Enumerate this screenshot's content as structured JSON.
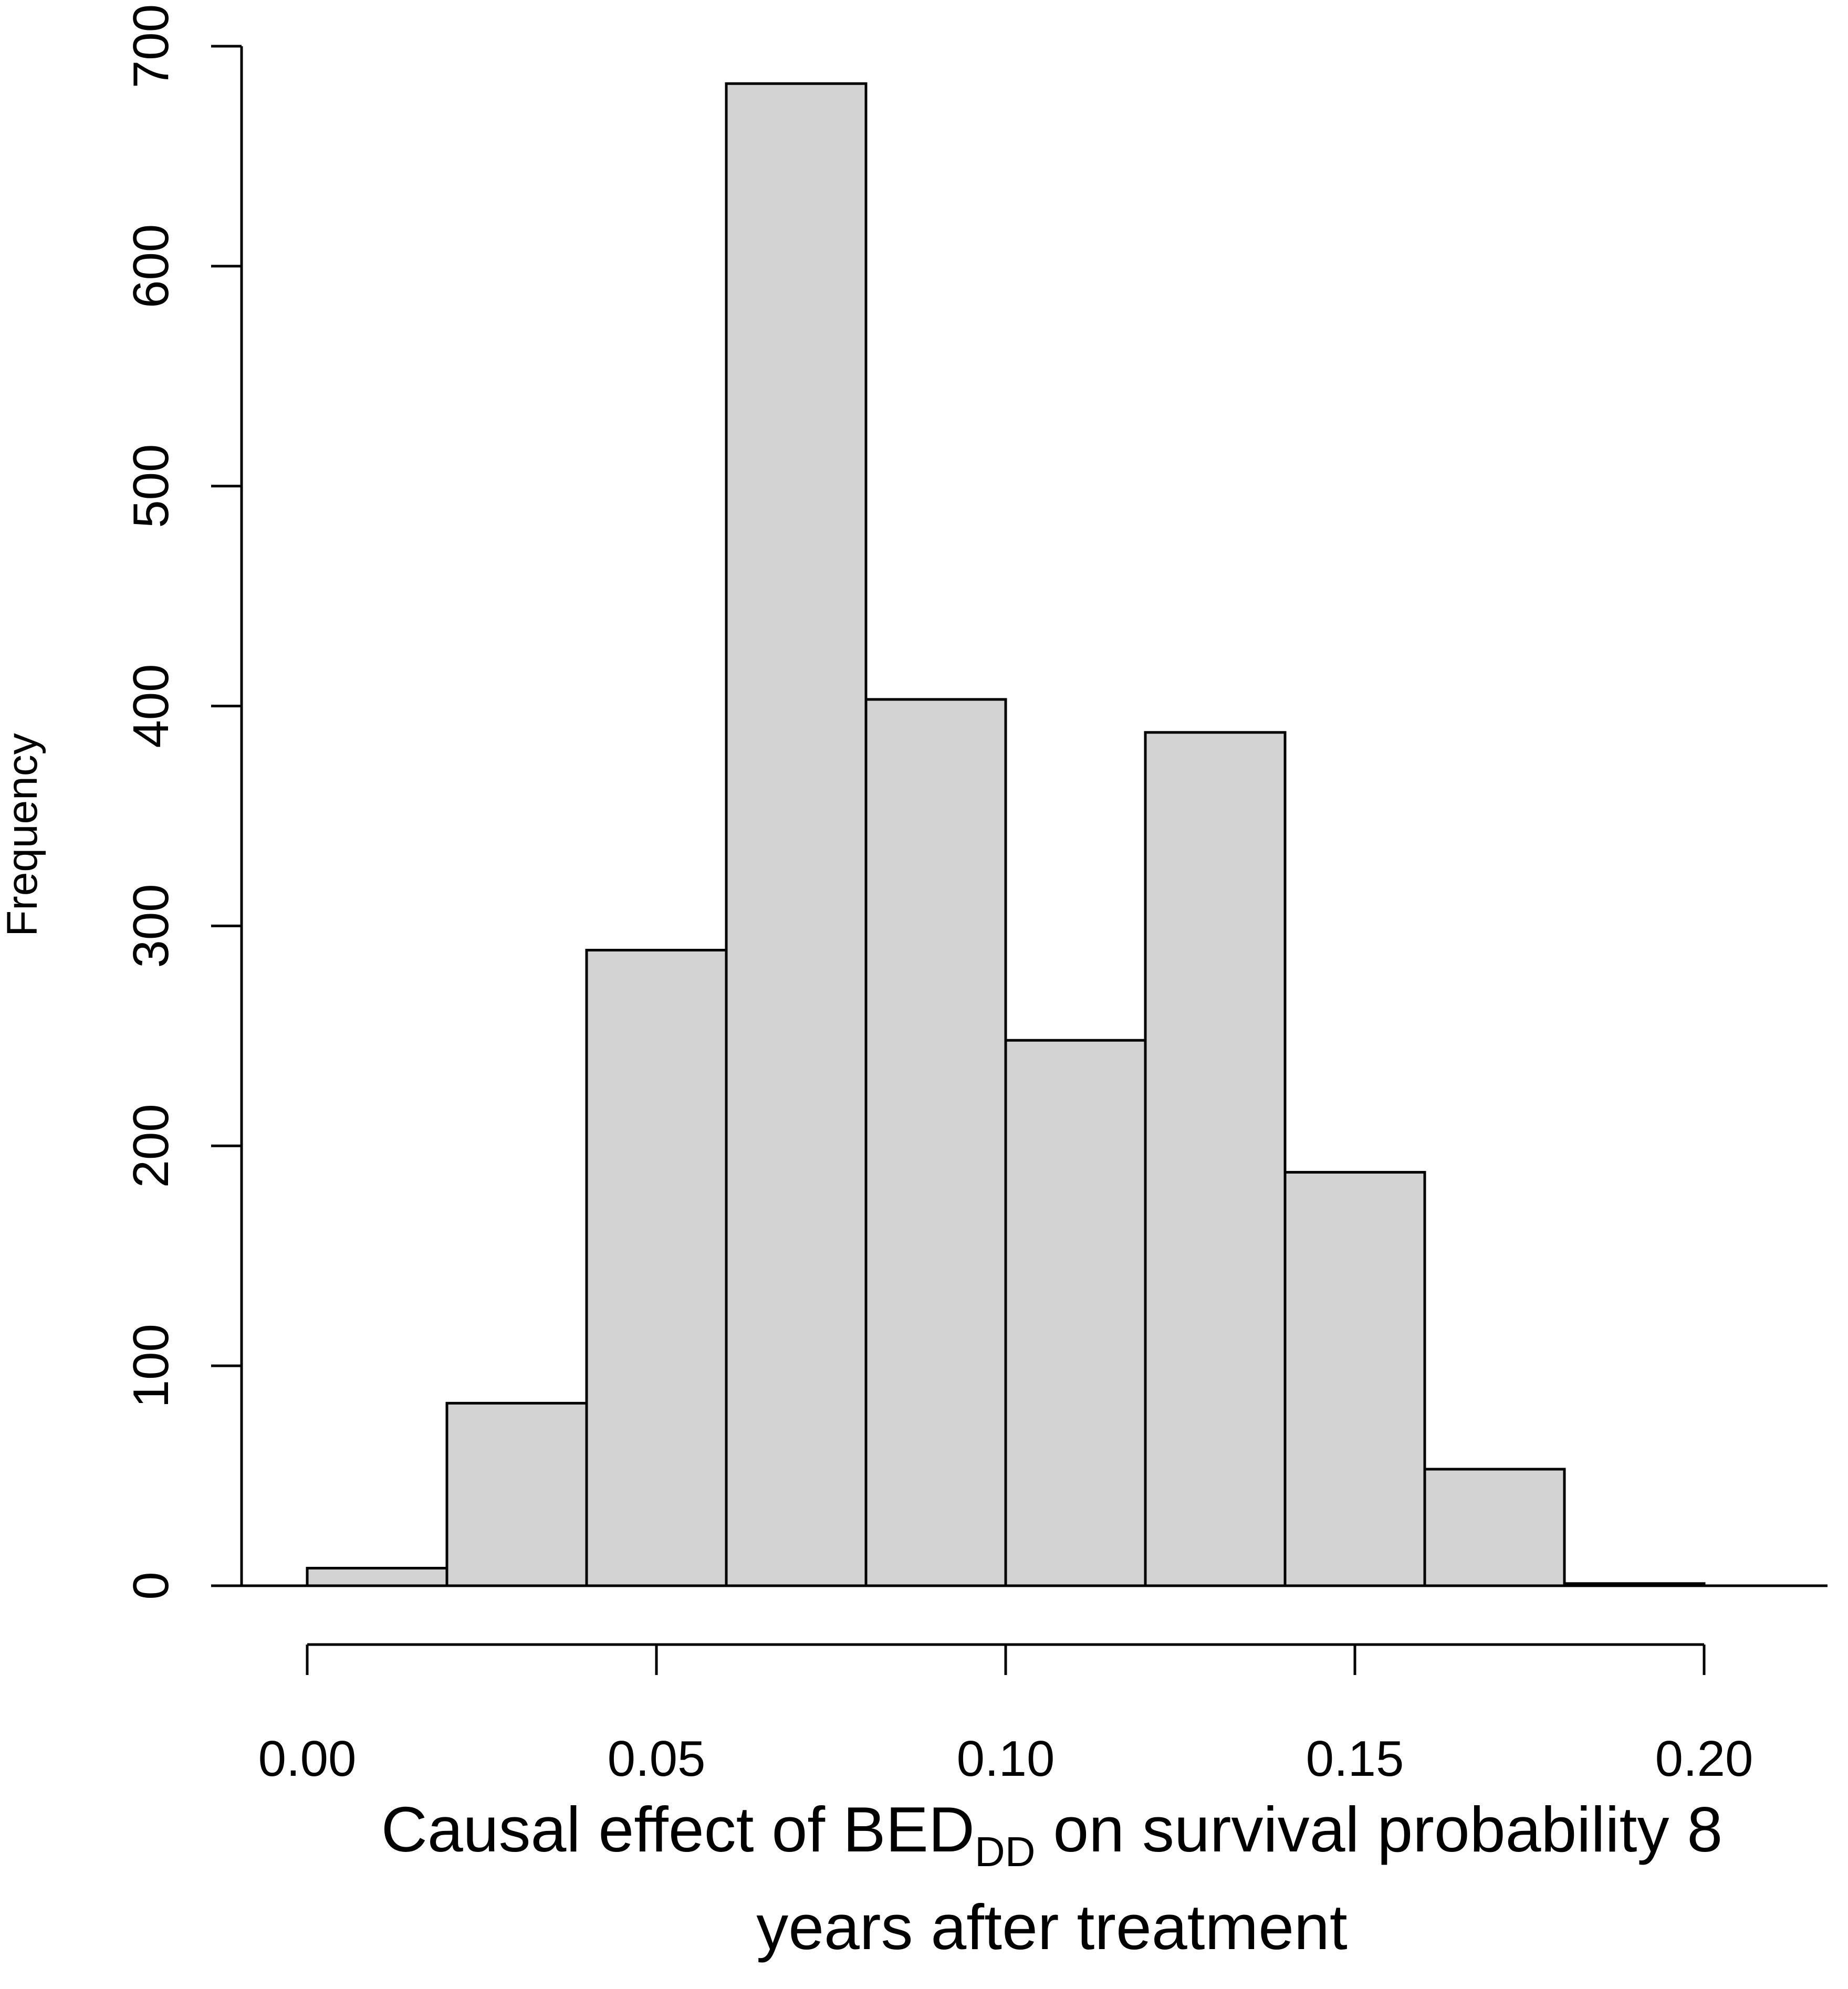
{
  "chart_data": {
    "type": "bar",
    "subtype": "histogram",
    "title": "",
    "xlabel": {
      "prefix": "Causal effect of BED",
      "subscript": "DD",
      "suffix": " on survival probability 8",
      "line2": "years after treatment"
    },
    "ylabel": "Frequency",
    "bin_edges": [
      0.0,
      0.02,
      0.04,
      0.06,
      0.08,
      0.1,
      0.12,
      0.14,
      0.16,
      0.18,
      0.2
    ],
    "values": [
      8,
      83,
      289,
      683,
      403,
      248,
      388,
      188,
      53,
      1
    ],
    "xlim": [
      0.0,
      0.2
    ],
    "ylim": [
      0,
      700
    ],
    "x_ticks": [
      0.0,
      0.05,
      0.1,
      0.15,
      0.2
    ],
    "x_tick_labels": [
      "0.00",
      "0.05",
      "0.10",
      "0.15",
      "0.20"
    ],
    "y_ticks": [
      0,
      100,
      200,
      300,
      400,
      500,
      600,
      700
    ],
    "y_tick_labels": [
      "0",
      "100",
      "200",
      "300",
      "400",
      "500",
      "600",
      "700"
    ],
    "bar_fill": "#d3d3d3",
    "bar_stroke": "#000000",
    "grid": false
  }
}
